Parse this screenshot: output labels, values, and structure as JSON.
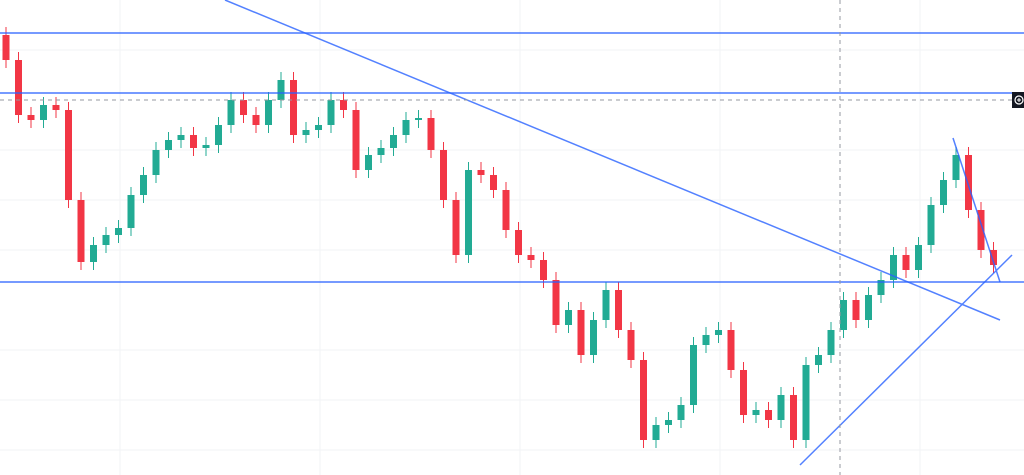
{
  "chart_data": {
    "type": "candlestick",
    "ylim": [
      0,
      475
    ],
    "up_color": "#22ab94",
    "down_color": "#f23645",
    "level_color": "#2962ff",
    "levels": [
      442,
      382,
      193
    ],
    "open": [
      440,
      415,
      360,
      355,
      370,
      365,
      275,
      213,
      230,
      240,
      247,
      280,
      300,
      325,
      335,
      340,
      327,
      330,
      350,
      375,
      360,
      350,
      375,
      395,
      340,
      345,
      350,
      375,
      365,
      305,
      320,
      327,
      340,
      355,
      357,
      325,
      275,
      220,
      305,
      300,
      285,
      245,
      220,
      215,
      195,
      150,
      165,
      120,
      155,
      185,
      145,
      115,
      35,
      50,
      55,
      70,
      130,
      140,
      145,
      105,
      60,
      65,
      55,
      80,
      35,
      110,
      120,
      145,
      175,
      155,
      180,
      195,
      220,
      205,
      230,
      270,
      295,
      320,
      265,
      225
    ],
    "high": [
      448,
      423,
      368,
      378,
      378,
      373,
      283,
      238,
      248,
      255,
      288,
      308,
      333,
      343,
      348,
      348,
      338,
      358,
      383,
      383,
      368,
      383,
      403,
      403,
      353,
      358,
      383,
      383,
      373,
      328,
      335,
      348,
      363,
      365,
      365,
      333,
      283,
      313,
      313,
      308,
      293,
      253,
      228,
      223,
      203,
      173,
      173,
      163,
      193,
      193,
      153,
      123,
      58,
      63,
      78,
      138,
      148,
      153,
      153,
      113,
      73,
      73,
      88,
      88,
      118,
      128,
      153,
      183,
      183,
      188,
      203,
      228,
      228,
      238,
      278,
      303,
      328,
      328,
      273,
      233
    ],
    "low": [
      407,
      352,
      347,
      347,
      357,
      267,
      205,
      205,
      222,
      232,
      239,
      272,
      292,
      317,
      327,
      319,
      319,
      322,
      342,
      352,
      342,
      342,
      367,
      332,
      332,
      337,
      342,
      357,
      297,
      297,
      312,
      319,
      332,
      347,
      317,
      267,
      212,
      212,
      292,
      277,
      237,
      212,
      207,
      187,
      142,
      142,
      112,
      112,
      147,
      137,
      107,
      27,
      27,
      42,
      47,
      62,
      122,
      132,
      97,
      52,
      52,
      47,
      47,
      27,
      27,
      102,
      112,
      137,
      147,
      147,
      172,
      187,
      197,
      197,
      222,
      262,
      287,
      257,
      217,
      202
    ],
    "close": [
      415,
      360,
      355,
      370,
      365,
      275,
      213,
      230,
      240,
      247,
      280,
      300,
      325,
      335,
      340,
      327,
      330,
      350,
      375,
      360,
      350,
      375,
      395,
      340,
      345,
      350,
      375,
      365,
      305,
      320,
      327,
      340,
      355,
      357,
      325,
      275,
      220,
      305,
      300,
      285,
      245,
      220,
      215,
      195,
      150,
      165,
      120,
      155,
      185,
      145,
      115,
      35,
      50,
      55,
      70,
      130,
      140,
      145,
      105,
      60,
      65,
      55,
      80,
      35,
      110,
      120,
      145,
      175,
      155,
      180,
      195,
      220,
      205,
      230,
      270,
      295,
      320,
      265,
      225,
      210
    ]
  }
}
